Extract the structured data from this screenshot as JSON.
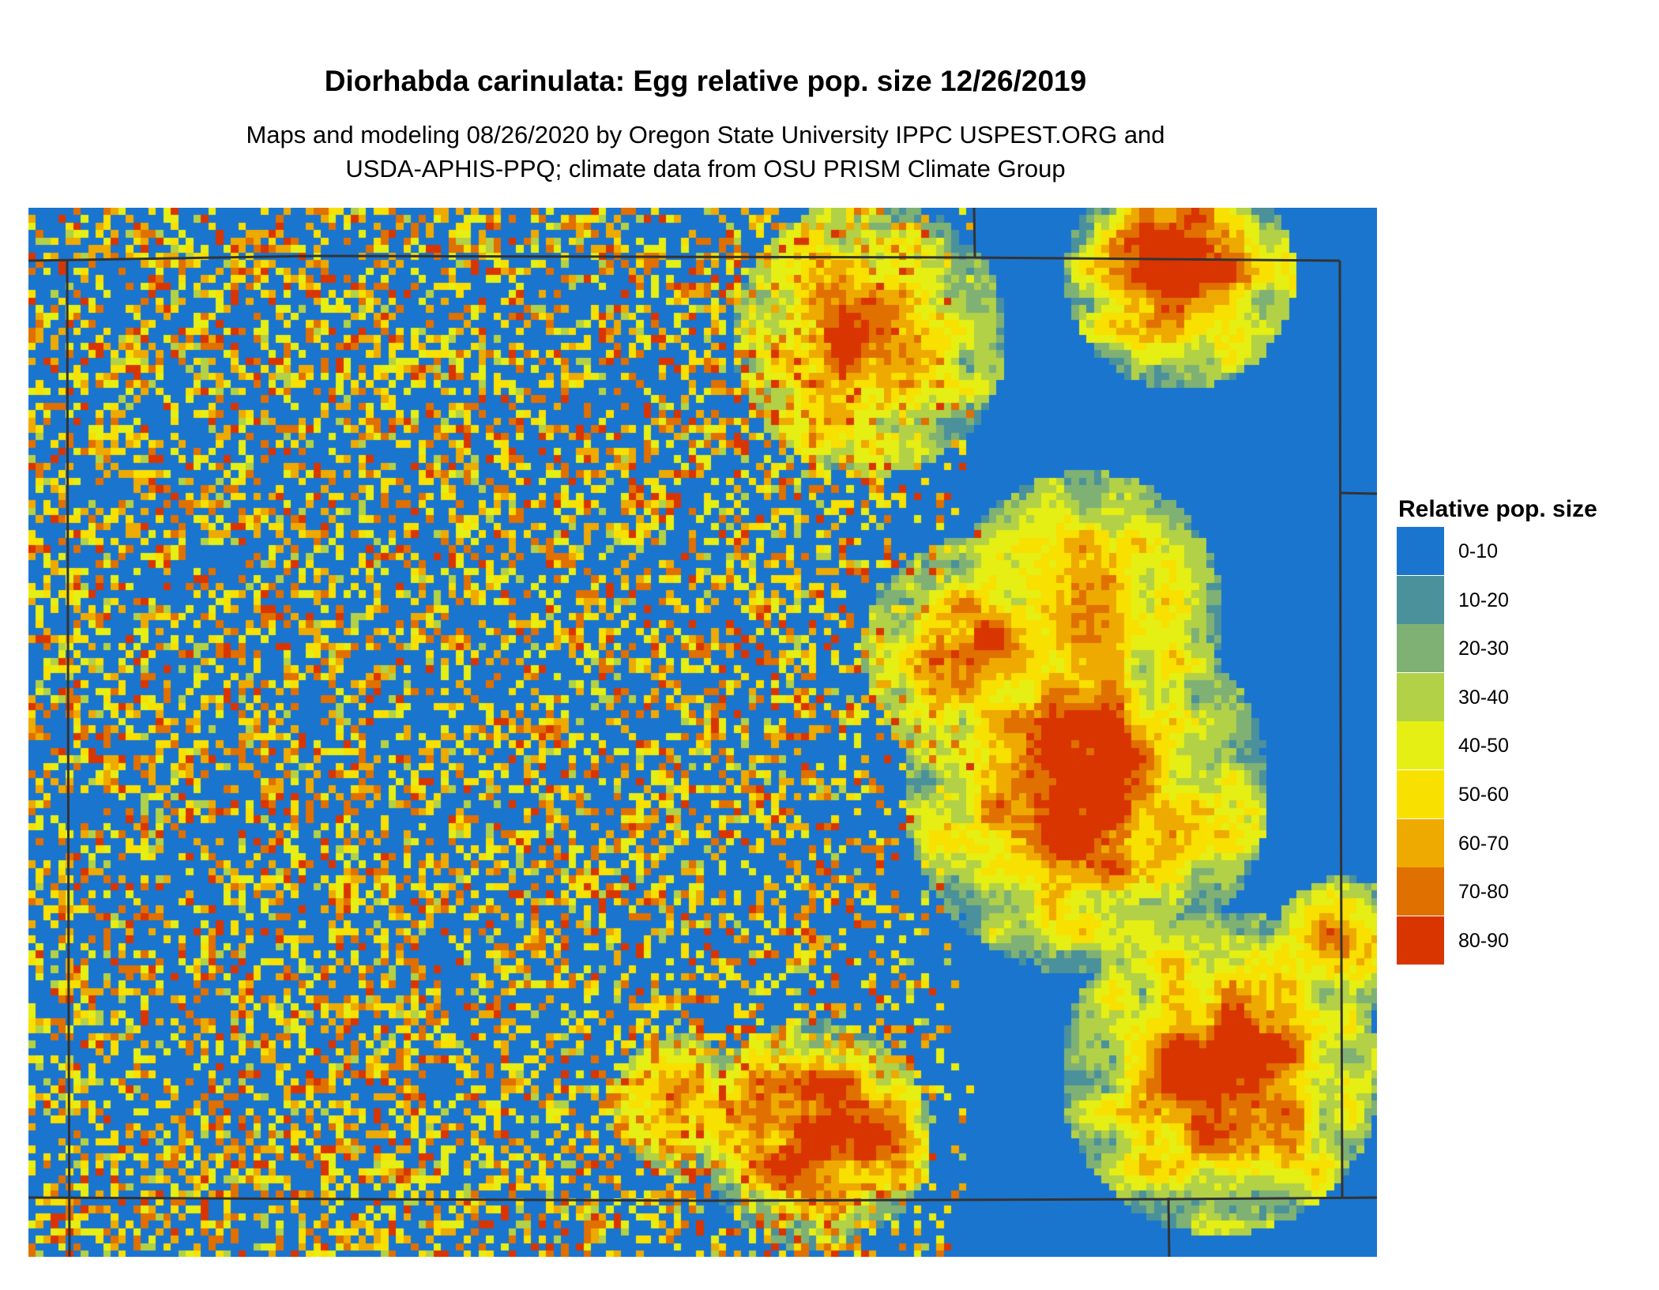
{
  "title": "Diorhabda carinulata: Egg relative pop. size 12/26/2019",
  "subtitle_line1": "Maps and modeling 08/26/2020 by Oregon State University IPPC USPEST.ORG and",
  "subtitle_line2": "USDA-APHIS-PPQ; climate data from OSU PRISM Climate Group",
  "legend": {
    "title": "Relative pop. size",
    "items": [
      {
        "label": "0-10",
        "color": "#1a75cf"
      },
      {
        "label": "10-20",
        "color": "#4a919b"
      },
      {
        "label": "20-30",
        "color": "#7fb175"
      },
      {
        "label": "30-40",
        "color": "#b2d146"
      },
      {
        "label": "40-50",
        "color": "#e5ef14"
      },
      {
        "label": "50-60",
        "color": "#f8e000"
      },
      {
        "label": "60-70",
        "color": "#eeaa00"
      },
      {
        "label": "70-80",
        "color": "#e07000"
      },
      {
        "label": "80-90",
        "color": "#d93500"
      }
    ]
  },
  "map": {
    "type": "raster",
    "border_color": "#333333"
  }
}
